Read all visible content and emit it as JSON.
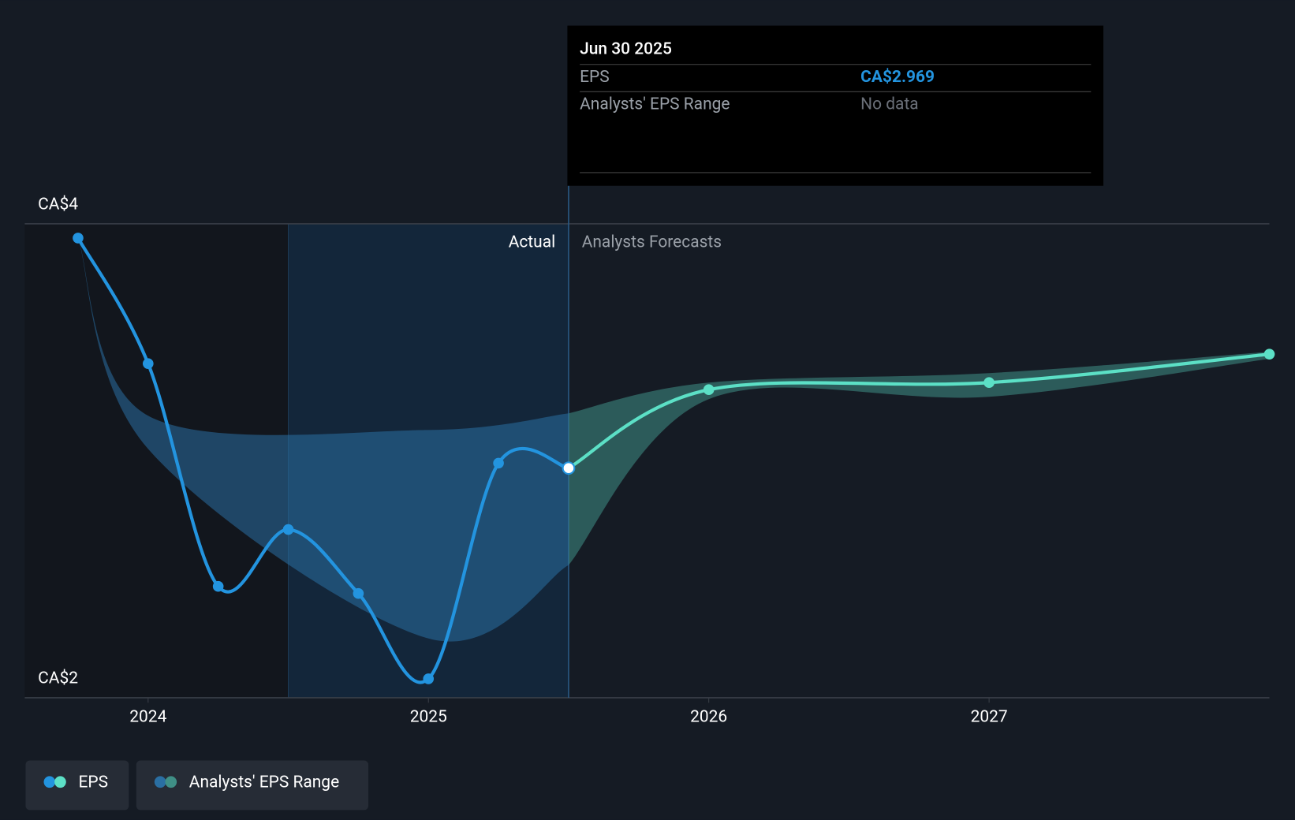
{
  "chart_data": {
    "type": "line",
    "xlim": [
      2023.56,
      2028.0
    ],
    "xticks": [
      2024,
      2025,
      2026,
      2027
    ],
    "ylim": [
      2,
      4
    ],
    "yticks": [
      {
        "value": 2,
        "label": "CA$2"
      },
      {
        "value": 4,
        "label": "CA$4"
      }
    ],
    "divider": 2025.5,
    "region_labels": {
      "actual": "Actual",
      "forecast": "Analysts Forecasts"
    },
    "series": [
      {
        "name": "EPS",
        "color": "#2394df",
        "forecast_color": "#5ce0c6",
        "x": [
          2023.75,
          2024.0,
          2024.25,
          2024.5,
          2024.75,
          2025.0,
          2025.25,
          2025.5,
          2026.0,
          2027.0,
          2028.0
        ],
        "values": [
          3.94,
          3.41,
          2.47,
          2.71,
          2.44,
          2.08,
          2.99,
          2.969,
          3.3,
          3.33,
          3.45
        ]
      },
      {
        "name": "Analysts' EPS Range",
        "color": "#2a6fa3",
        "forecast_color": "#3f8f86",
        "x": [
          2023.75,
          2024.0,
          2025.0,
          2025.5,
          2026.0,
          2027.0,
          2028.0
        ],
        "low": [
          3.94,
          3.05,
          2.25,
          2.56,
          3.26,
          3.27,
          3.43
        ],
        "high": [
          3.94,
          3.19,
          3.13,
          3.2,
          3.33,
          3.37,
          3.46
        ]
      }
    ],
    "tooltip": {
      "date": "Jun 30 2025",
      "rows": [
        {
          "label": "EPS",
          "value": 2.969,
          "value_label": "CA$2.969"
        },
        {
          "label": "Analysts' EPS Range",
          "value_label": "No data"
        }
      ]
    }
  }
}
